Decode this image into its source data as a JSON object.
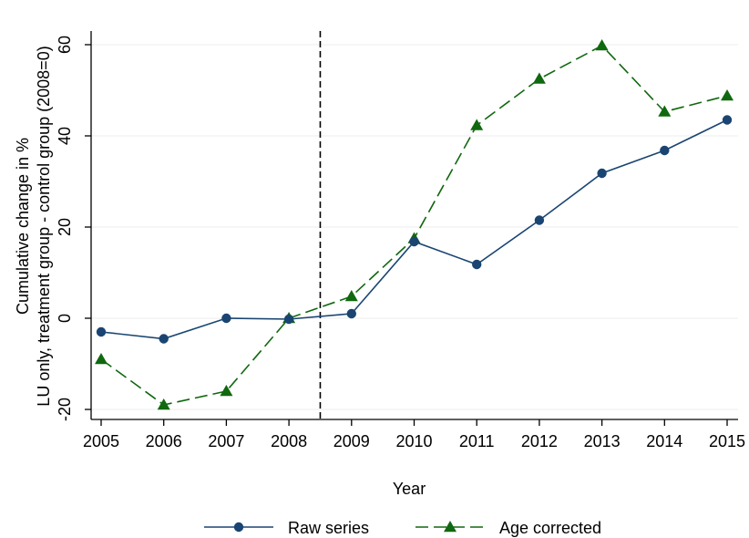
{
  "chart_data": {
    "type": "line",
    "title": "",
    "xlabel": "Year",
    "ylabel_lines": [
      "Cumulative change in %",
      "LU only, treatment group - control group (2008=0)"
    ],
    "x": [
      2005,
      2006,
      2007,
      2008,
      2009,
      2010,
      2011,
      2012,
      2013,
      2014,
      2015
    ],
    "xlim": [
      2005,
      2015
    ],
    "ylim": [
      -20,
      60
    ],
    "yticks": [
      -20,
      0,
      20,
      40,
      60
    ],
    "grid": "horizontal",
    "reference_line_x": 2008.5,
    "legend_position": "bottom",
    "series": [
      {
        "name": "Raw series",
        "values": [
          -3,
          -4.5,
          0,
          -0.2,
          1,
          16.8,
          11.8,
          21.5,
          31.8,
          36.8,
          43.5
        ],
        "color": "#1a4572",
        "marker": "circle",
        "dash": "solid"
      },
      {
        "name": "Age corrected",
        "values": [
          -9,
          -19,
          -16,
          0,
          4.8,
          17.5,
          42.3,
          52.5,
          59.8,
          45.3,
          48.8
        ],
        "color": "#10680f",
        "marker": "triangle",
        "dash": "dashed"
      }
    ]
  }
}
